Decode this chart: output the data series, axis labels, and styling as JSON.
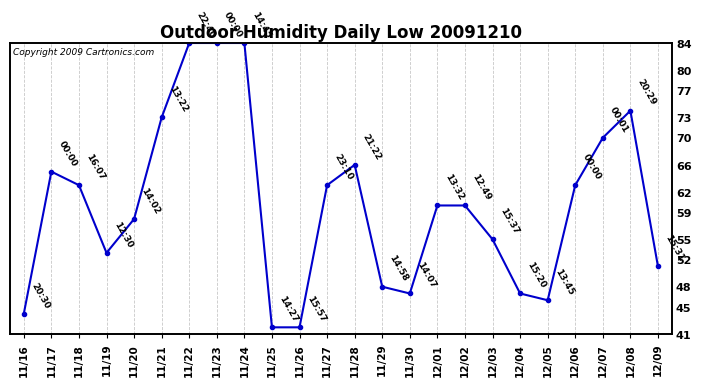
{
  "title": "Outdoor Humidity Daily Low 20091210",
  "copyright": "Copyright 2009 Cartronics.com",
  "x_labels": [
    "11/16",
    "11/17",
    "11/18",
    "11/19",
    "11/20",
    "11/21",
    "11/22",
    "11/23",
    "11/24",
    "11/25",
    "11/26",
    "11/27",
    "11/28",
    "11/29",
    "11/30",
    "12/01",
    "12/02",
    "12/03",
    "12/04",
    "12/05",
    "12/06",
    "12/07",
    "12/08",
    "12/09"
  ],
  "y_values": [
    44,
    65,
    63,
    53,
    58,
    73,
    84,
    84,
    84,
    42,
    42,
    63,
    66,
    48,
    47,
    60,
    60,
    55,
    47,
    46,
    63,
    70,
    74,
    51
  ],
  "time_labels": [
    "20:30",
    "00:00",
    "16:07",
    "12:30",
    "14:02",
    "13:22",
    "22:40",
    "00:00",
    "14:45",
    "14:27",
    "15:57",
    "23:10",
    "21:22",
    "14:58",
    "14:07",
    "13:32",
    "12:49",
    "15:37",
    "15:20",
    "13:45",
    "00:00",
    "00:01",
    "20:29",
    "15:31"
  ],
  "ylim": [
    41,
    84
  ],
  "y_ticks_right": [
    41,
    45,
    48,
    52,
    55,
    59,
    62,
    66,
    70,
    73,
    77,
    80,
    84
  ],
  "line_color": "#0000cc",
  "marker_color": "#0000cc",
  "bg_color": "#ffffff",
  "grid_color": "#c8c8c8",
  "title_fontsize": 12,
  "annot_fontsize": 6.5
}
